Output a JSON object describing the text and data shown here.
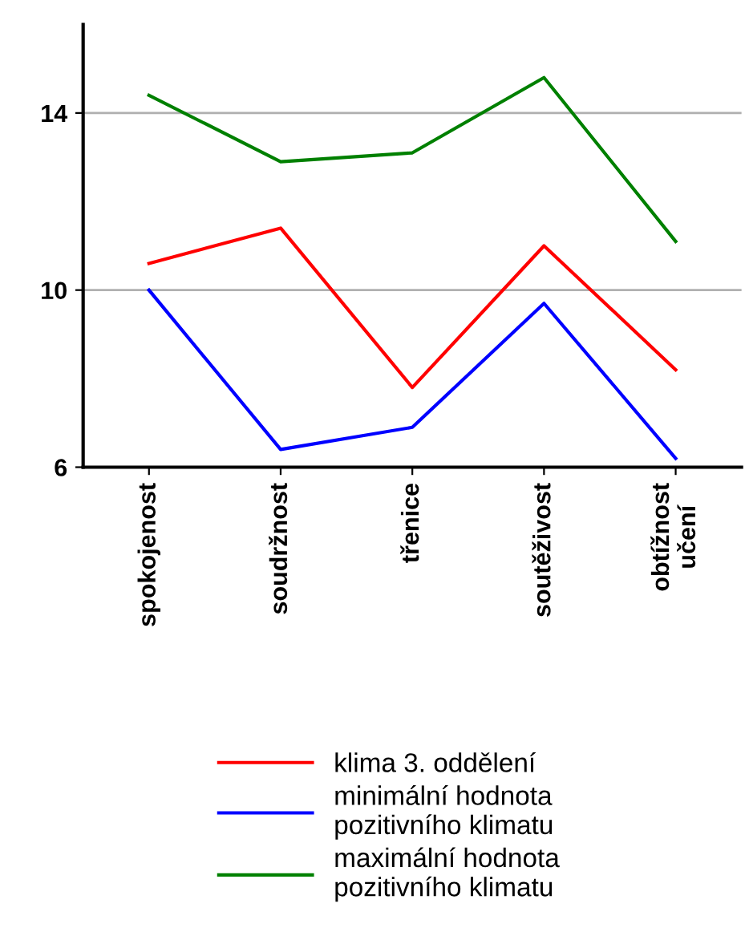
{
  "chart_data": {
    "type": "line",
    "categories": [
      "spokojenost",
      "soudržnost",
      "třenice",
      "soutěživost",
      "obtížnost\nučení"
    ],
    "series": [
      {
        "name": "klima 3. oddělení",
        "color": "#ff0000",
        "values": [
          10.6,
          11.4,
          7.8,
          11.0,
          8.2
        ]
      },
      {
        "name": "minimální hodnota\npozitivního klimatu",
        "color": "#0000ff",
        "values": [
          10.0,
          6.4,
          6.9,
          9.7,
          6.2
        ]
      },
      {
        "name": "maximální hodnota\npozitivního klimatu",
        "color": "#008000",
        "values": [
          14.4,
          12.9,
          13.1,
          14.8,
          11.1
        ]
      }
    ],
    "ylim": [
      6,
      16
    ],
    "yticks": [
      6,
      10,
      14
    ],
    "grid": "y",
    "legend": "bottom",
    "marker": "none",
    "line_style": "solid"
  }
}
